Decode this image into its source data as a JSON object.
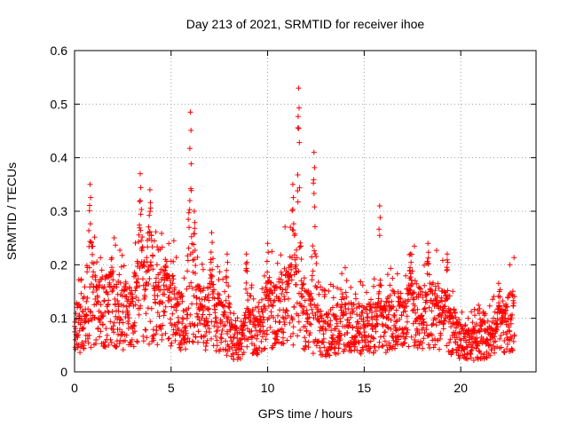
{
  "chart_data": {
    "type": "scatter",
    "title": "Day 213 of 2021, SRMTID for receiver ihoe",
    "xlabel": "GPS time / hours",
    "ylabel": "SRMTID / TECUs",
    "xlim": [
      0,
      23.9
    ],
    "ylim": [
      0,
      0.6
    ],
    "xticks": [
      0,
      5,
      10,
      15,
      20
    ],
    "yticks": [
      0,
      0.1,
      0.2,
      0.3,
      0.4,
      0.5,
      0.6
    ],
    "xtick_labels": [
      "0",
      "5",
      "10",
      "15",
      "20"
    ],
    "ytick_labels": [
      "0",
      "0.1",
      "0.2",
      "0.3",
      "0.4",
      "0.5",
      "0.6"
    ],
    "grid": true,
    "marker": "plus",
    "color": "#ff0000",
    "series": [
      {
        "name": "SRMTID",
        "x_start": 0.0,
        "x_end": 22.8,
        "x_step": 0.01,
        "baseline": [
          [
            0.0,
            0.09
          ],
          [
            0.5,
            0.08
          ],
          [
            1.0,
            0.12
          ],
          [
            1.5,
            0.11
          ],
          [
            2.0,
            0.12
          ],
          [
            2.5,
            0.1
          ],
          [
            3.0,
            0.11
          ],
          [
            3.5,
            0.13
          ],
          [
            4.0,
            0.12
          ],
          [
            4.5,
            0.13
          ],
          [
            5.0,
            0.12
          ],
          [
            5.5,
            0.09
          ],
          [
            6.0,
            0.11
          ],
          [
            6.5,
            0.1
          ],
          [
            7.0,
            0.1
          ],
          [
            7.5,
            0.09
          ],
          [
            8.0,
            0.06
          ],
          [
            8.5,
            0.05
          ],
          [
            9.0,
            0.07
          ],
          [
            9.5,
            0.08
          ],
          [
            10.0,
            0.1
          ],
          [
            10.5,
            0.11
          ],
          [
            11.0,
            0.13
          ],
          [
            11.5,
            0.12
          ],
          [
            12.0,
            0.1
          ],
          [
            12.5,
            0.08
          ],
          [
            13.0,
            0.07
          ],
          [
            13.5,
            0.08
          ],
          [
            14.0,
            0.09
          ],
          [
            14.5,
            0.08
          ],
          [
            15.0,
            0.08
          ],
          [
            15.5,
            0.08
          ],
          [
            16.0,
            0.08
          ],
          [
            16.5,
            0.1
          ],
          [
            17.0,
            0.09
          ],
          [
            17.5,
            0.11
          ],
          [
            18.0,
            0.1
          ],
          [
            18.5,
            0.11
          ],
          [
            19.0,
            0.1
          ],
          [
            19.5,
            0.08
          ],
          [
            20.0,
            0.06
          ],
          [
            20.5,
            0.05
          ],
          [
            21.0,
            0.06
          ],
          [
            21.5,
            0.06
          ],
          [
            22.0,
            0.08
          ],
          [
            22.5,
            0.09
          ],
          [
            22.8,
            0.1
          ]
        ],
        "spikes": [
          {
            "x": 0.8,
            "width": 0.25,
            "peak": 0.35
          },
          {
            "x": 1.9,
            "width": 0.25,
            "peak": 0.21
          },
          {
            "x": 3.4,
            "width": 0.25,
            "peak": 0.37
          },
          {
            "x": 3.9,
            "width": 0.3,
            "peak": 0.34
          },
          {
            "x": 4.7,
            "width": 0.25,
            "peak": 0.21
          },
          {
            "x": 6.0,
            "width": 0.22,
            "peak": 0.485
          },
          {
            "x": 6.2,
            "width": 0.15,
            "peak": 0.3
          },
          {
            "x": 7.1,
            "width": 0.2,
            "peak": 0.26
          },
          {
            "x": 7.9,
            "width": 0.2,
            "peak": 0.22
          },
          {
            "x": 8.9,
            "width": 0.2,
            "peak": 0.22
          },
          {
            "x": 10.0,
            "width": 0.2,
            "peak": 0.24
          },
          {
            "x": 11.3,
            "width": 0.25,
            "peak": 0.35
          },
          {
            "x": 11.6,
            "width": 0.2,
            "peak": 0.53
          },
          {
            "x": 12.4,
            "width": 0.2,
            "peak": 0.41
          },
          {
            "x": 15.8,
            "width": 0.15,
            "peak": 0.31
          },
          {
            "x": 17.4,
            "width": 0.2,
            "peak": 0.22
          },
          {
            "x": 18.3,
            "width": 0.2,
            "peak": 0.24
          },
          {
            "x": 19.3,
            "width": 0.15,
            "peak": 0.22
          },
          {
            "x": 22.0,
            "width": 0.2,
            "peak": 0.15
          }
        ]
      }
    ]
  }
}
